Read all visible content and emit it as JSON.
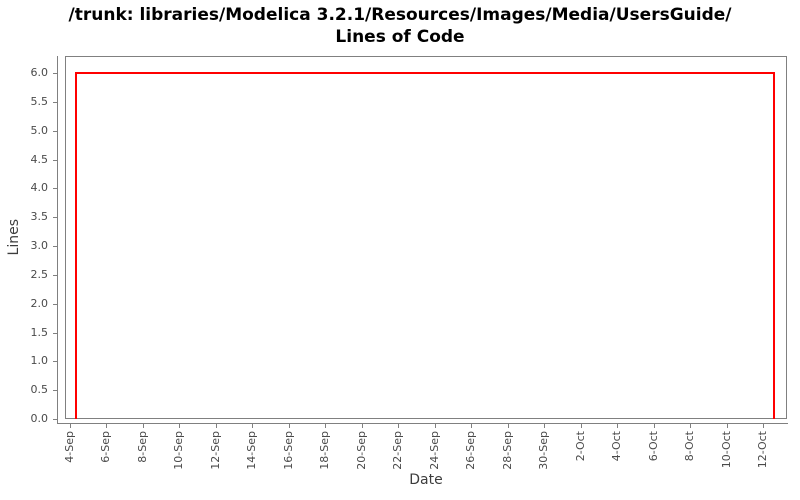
{
  "title": {
    "line1": "/trunk: libraries/Modelica 3.2.1/Resources/Images/Media/UsersGuide/",
    "line2": "Lines of Code"
  },
  "chart_data": {
    "type": "line",
    "step": true,
    "title": "/trunk: libraries/Modelica 3.2.1/Resources/Images/Media/UsersGuide/ Lines of Code",
    "xlabel": "Date",
    "ylabel": "Lines",
    "x_tick_labels": [
      "4-Sep",
      "6-Sep",
      "8-Sep",
      "10-Sep",
      "12-Sep",
      "14-Sep",
      "16-Sep",
      "18-Sep",
      "20-Sep",
      "22-Sep",
      "24-Sep",
      "26-Sep",
      "28-Sep",
      "30-Sep",
      "2-Oct",
      "4-Oct",
      "6-Oct",
      "8-Oct",
      "10-Oct",
      "12-Oct"
    ],
    "y_tick_labels": [
      "0.0",
      "0.5",
      "1.0",
      "1.5",
      "2.0",
      "2.5",
      "3.0",
      "3.5",
      "4.0",
      "4.5",
      "5.0",
      "5.5",
      "6.0"
    ],
    "ylim": [
      0.0,
      6.3
    ],
    "x_range": [
      "4-Sep",
      "13-Oct"
    ],
    "grid": false,
    "legend": "none",
    "series": [
      {
        "name": "Lines of Code",
        "color": "#ff0000",
        "points": [
          {
            "x": "4-Sep",
            "y": 0
          },
          {
            "x": "4-Sep",
            "y": 6
          },
          {
            "x": "13-Oct",
            "y": 6
          },
          {
            "x": "13-Oct",
            "y": 0
          }
        ]
      }
    ]
  },
  "colors": {
    "series": "#ff0000",
    "axis": "#808080",
    "tick_label": "#4a4a4a",
    "axis_label": "#3d3d3d",
    "title": "#000000",
    "background": "#ffffff"
  }
}
